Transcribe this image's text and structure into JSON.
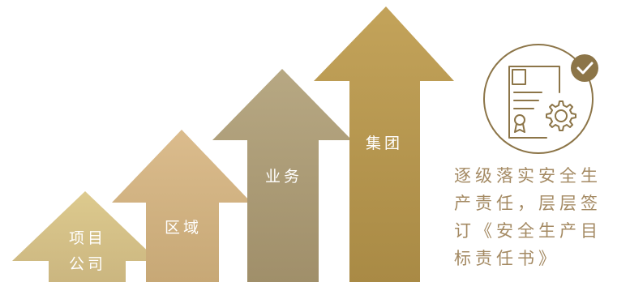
{
  "arrows": [
    {
      "label_lines": [
        "项目",
        "公司"
      ],
      "color": "#d9c58a"
    },
    {
      "label_lines": [
        "区域"
      ],
      "color": "#d5b486"
    },
    {
      "label_lines": [
        "业务"
      ],
      "color": "#b0a07c"
    },
    {
      "label_lines": [
        "集团"
      ],
      "color": "#b99a50"
    }
  ],
  "icon": {
    "name": "contract-gear-check-icon",
    "color": "#8c7548",
    "badge_color": "#8c7548"
  },
  "description": {
    "lines": [
      "逐级落实安全生",
      "产责任，层层签",
      "订《安全生产目",
      "标责任书》"
    ],
    "color": "#a48a63"
  }
}
